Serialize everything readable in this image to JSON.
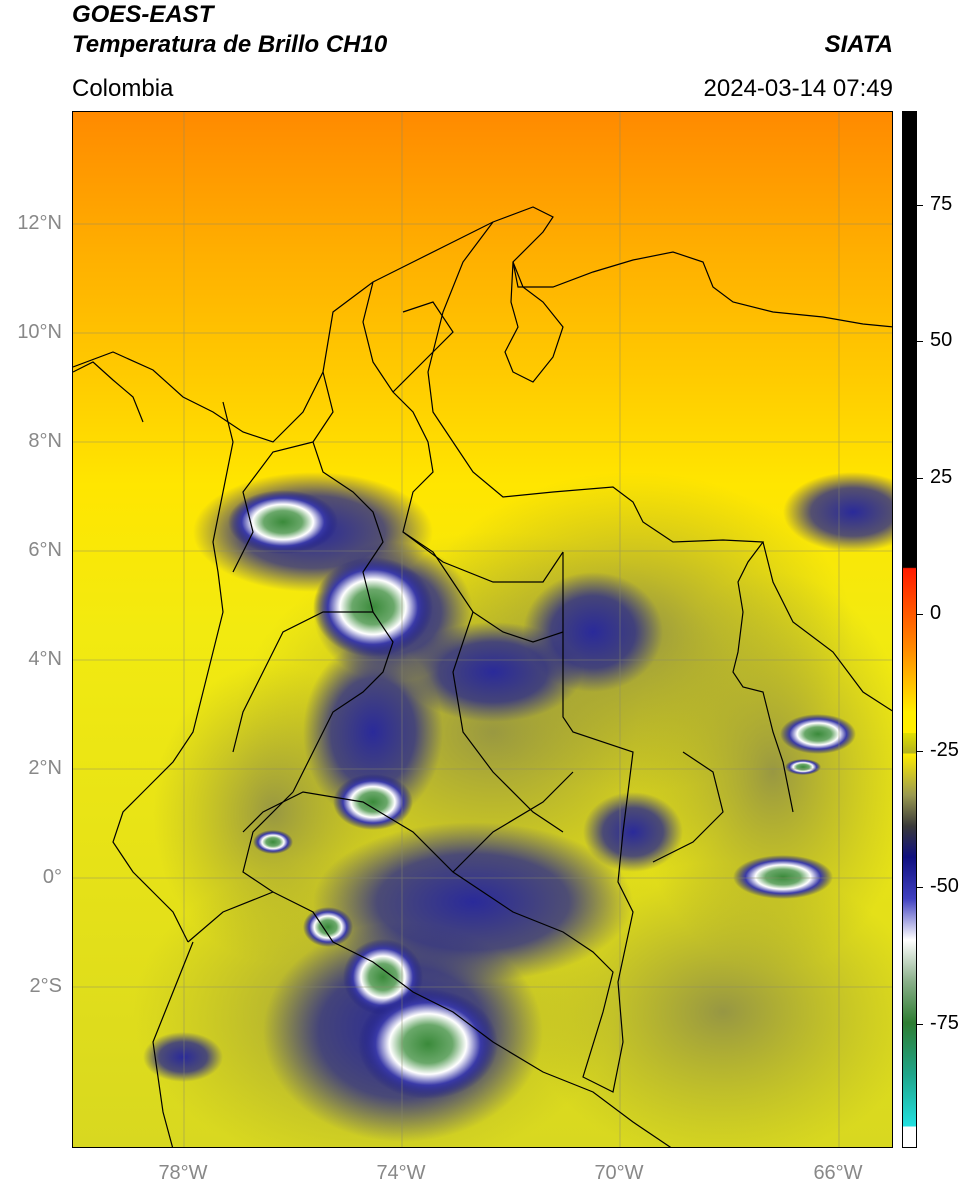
{
  "header": {
    "satellite": "GOES-EAST",
    "product": "Temperatura de Brillo CH10",
    "region": "Colombia",
    "agency": "SIATA",
    "timestamp": "2024-03-14 07:49"
  },
  "axes": {
    "lat_labels": [
      "12°N",
      "10°N",
      "8°N",
      "6°N",
      "4°N",
      "2°N",
      "0°",
      "2°S"
    ],
    "lon_labels": [
      "78°W",
      "74°W",
      "70°W",
      "66°W"
    ]
  },
  "colorbar": {
    "labels": [
      "75",
      "50",
      "25",
      "0",
      "-25",
      "-50",
      "-75"
    ],
    "colors": {
      "black": "#000000",
      "red": "#ff1a00",
      "orange": "#ff8c00",
      "yellow": "#ffee00",
      "olive": "#8a8a3a",
      "navy": "#101080",
      "white": "#ffffff",
      "green": "#2e7d32",
      "teal": "#1fa58a",
      "cyan": "#22e0e0"
    }
  },
  "map_colors": {
    "warm_north": "#ff8a00",
    "mid": "#ffc400",
    "yellow": "#fff000",
    "olive": "#b8b82a",
    "deep_convection": "#1a1a8c",
    "very_cold": "#ffffff",
    "coldest": "#3a8a3a"
  }
}
